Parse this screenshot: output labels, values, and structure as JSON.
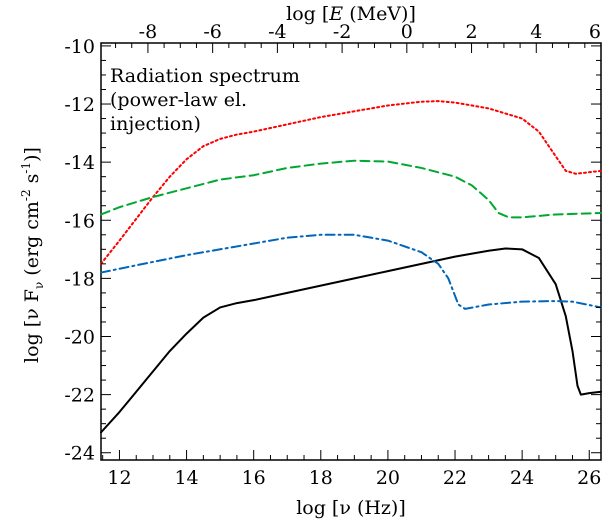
{
  "chart_data": {
    "type": "line",
    "title": "",
    "annotation": [
      "Radiation spectrum",
      "(power-law el.",
      "injection)"
    ],
    "xlabel": "log [ν (Hz)]",
    "ylabel": "log [ν F",
    "ylabel_sub": "ν",
    "ylabel_unit": " (erg cm",
    "ylabel_exp1": "-2",
    "ylabel_s": " s",
    "ylabel_exp2": "-1",
    "ylabel_close": ")]",
    "top_xlabel_pre": "log [",
    "top_xlabel_var": "E",
    "top_xlabel_post": " (MeV)]",
    "xlim": [
      11.45,
      26.35
    ],
    "ylim": [
      -24.25,
      -9.9
    ],
    "top_xlim": [
      -9.45,
      6.0
    ],
    "x_ticks": [
      12,
      14,
      16,
      18,
      20,
      22,
      24,
      26
    ],
    "y_ticks": [
      -10,
      -12,
      -14,
      -16,
      -18,
      -20,
      -22,
      -24
    ],
    "top_ticks": [
      -8,
      -6,
      -4,
      -2,
      0,
      2,
      4,
      6
    ],
    "series": [
      {
        "color": "#000000",
        "dash": "",
        "points": [
          [
            11.45,
            -23.3
          ],
          [
            12.0,
            -22.6
          ],
          [
            12.5,
            -21.9
          ],
          [
            13.0,
            -21.2
          ],
          [
            13.5,
            -20.5
          ],
          [
            14.0,
            -19.9
          ],
          [
            14.5,
            -19.35
          ],
          [
            15.0,
            -19.0
          ],
          [
            15.5,
            -18.85
          ],
          [
            16.0,
            -18.75
          ],
          [
            17.0,
            -18.5
          ],
          [
            18.0,
            -18.25
          ],
          [
            19.0,
            -18.0
          ],
          [
            20.0,
            -17.75
          ],
          [
            21.0,
            -17.5
          ],
          [
            22.0,
            -17.25
          ],
          [
            23.0,
            -17.05
          ],
          [
            23.5,
            -16.97
          ],
          [
            24.0,
            -17.0
          ],
          [
            24.5,
            -17.3
          ],
          [
            25.0,
            -18.2
          ],
          [
            25.3,
            -19.3
          ],
          [
            25.5,
            -20.5
          ],
          [
            25.65,
            -21.7
          ],
          [
            25.75,
            -22.0
          ],
          [
            26.0,
            -21.95
          ],
          [
            26.35,
            -21.9
          ]
        ]
      },
      {
        "color": "#ff0000",
        "dash": "2,3",
        "points": [
          [
            11.45,
            -17.5
          ],
          [
            12.0,
            -16.7
          ],
          [
            12.5,
            -15.95
          ],
          [
            13.0,
            -15.2
          ],
          [
            13.5,
            -14.5
          ],
          [
            14.0,
            -13.9
          ],
          [
            14.5,
            -13.45
          ],
          [
            15.0,
            -13.2
          ],
          [
            15.5,
            -13.05
          ],
          [
            16.0,
            -12.95
          ],
          [
            17.0,
            -12.7
          ],
          [
            18.0,
            -12.45
          ],
          [
            19.0,
            -12.25
          ],
          [
            20.0,
            -12.05
          ],
          [
            21.0,
            -11.92
          ],
          [
            21.5,
            -11.9
          ],
          [
            22.0,
            -11.95
          ],
          [
            23.0,
            -12.15
          ],
          [
            24.0,
            -12.5
          ],
          [
            24.5,
            -12.95
          ],
          [
            25.0,
            -13.8
          ],
          [
            25.3,
            -14.3
          ],
          [
            25.6,
            -14.4
          ],
          [
            26.35,
            -14.3
          ]
        ]
      },
      {
        "color": "#00a832",
        "dash": "9,5",
        "points": [
          [
            11.45,
            -15.8
          ],
          [
            12.0,
            -15.55
          ],
          [
            13.0,
            -15.2
          ],
          [
            14.0,
            -14.9
          ],
          [
            15.0,
            -14.6
          ],
          [
            16.0,
            -14.45
          ],
          [
            17.0,
            -14.2
          ],
          [
            18.0,
            -14.05
          ],
          [
            19.0,
            -13.95
          ],
          [
            20.0,
            -13.98
          ],
          [
            21.0,
            -14.2
          ],
          [
            22.0,
            -14.5
          ],
          [
            22.5,
            -14.8
          ],
          [
            23.0,
            -15.3
          ],
          [
            23.3,
            -15.75
          ],
          [
            23.6,
            -15.9
          ],
          [
            24.0,
            -15.9
          ],
          [
            25.0,
            -15.8
          ],
          [
            26.35,
            -15.75
          ]
        ]
      },
      {
        "color": "#0066bb",
        "dash": "9,4,2,4",
        "points": [
          [
            11.45,
            -17.8
          ],
          [
            12.5,
            -17.55
          ],
          [
            14.0,
            -17.2
          ],
          [
            16.0,
            -16.8
          ],
          [
            17.0,
            -16.6
          ],
          [
            18.0,
            -16.5
          ],
          [
            19.0,
            -16.5
          ],
          [
            20.0,
            -16.7
          ],
          [
            21.0,
            -17.1
          ],
          [
            21.5,
            -17.5
          ],
          [
            21.8,
            -18.0
          ],
          [
            22.1,
            -18.9
          ],
          [
            22.3,
            -19.05
          ],
          [
            23.0,
            -18.9
          ],
          [
            24.0,
            -18.8
          ],
          [
            25.0,
            -18.78
          ],
          [
            25.5,
            -18.8
          ],
          [
            26.35,
            -19.0
          ]
        ]
      }
    ]
  }
}
